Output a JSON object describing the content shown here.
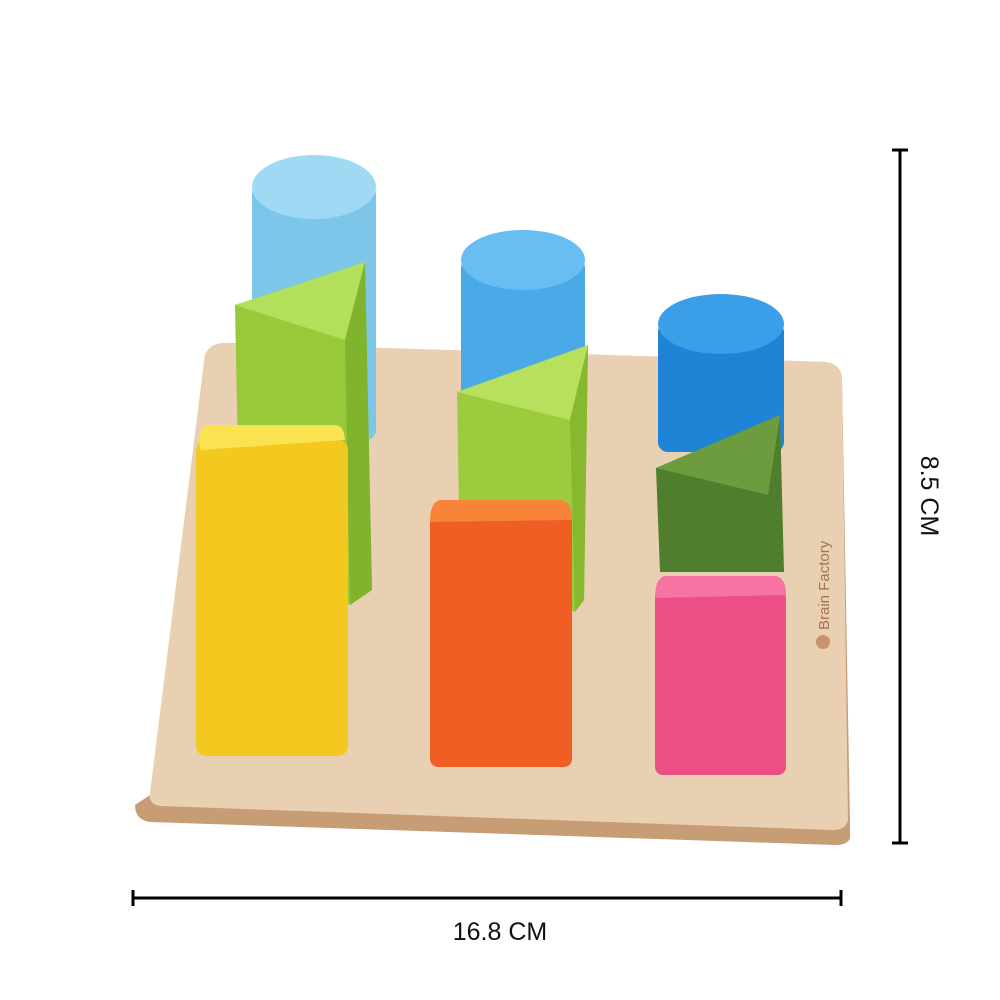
{
  "product": {
    "brand_logo_text": "Brain Factory",
    "height_label": "8.5 CM",
    "width_label": "16.8 CM"
  },
  "colors": {
    "board": "#e6c9a8",
    "light_blue": "#86cdef",
    "mid_blue": "#5bb4ee",
    "dark_blue": "#2f93e2",
    "light_green": "#a8d64a",
    "dark_green": "#5a8a34",
    "yellow": "#f6d02c",
    "orange": "#f26a2a",
    "pink": "#ef5c8e"
  }
}
